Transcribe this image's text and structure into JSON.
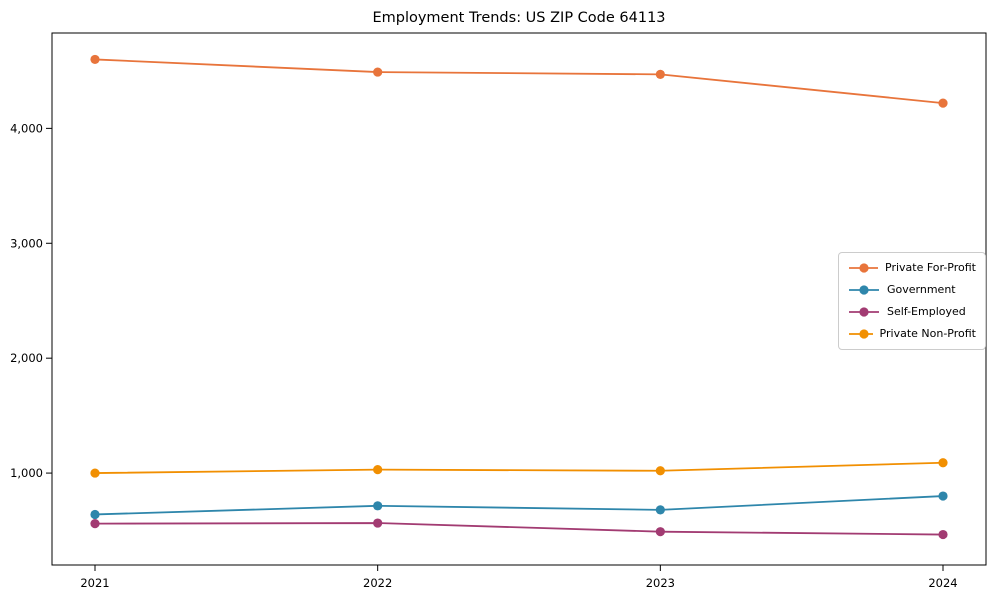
{
  "figure": {
    "title": "Employment Trends: US ZIP Code 64113"
  },
  "chart_data": {
    "type": "line",
    "title": "Employment Trends: US ZIP Code 64113",
    "xlabel": "",
    "ylabel": "",
    "categories": [
      "2021",
      "2022",
      "2023",
      "2024"
    ],
    "series": [
      {
        "name": "Private For-Profit",
        "color": "#E8743B",
        "values": [
          4600,
          4490,
          4470,
          4220
        ]
      },
      {
        "name": "Government",
        "color": "#2E86AB",
        "values": [
          640,
          715,
          680,
          800
        ]
      },
      {
        "name": "Self-Employed",
        "color": "#A23B72",
        "values": [
          560,
          565,
          490,
          465
        ]
      },
      {
        "name": "Private Non-Profit",
        "color": "#F18F01",
        "values": [
          1000,
          1030,
          1020,
          1090
        ]
      }
    ],
    "yticks": [
      {
        "value": 1000,
        "label": "1,000"
      },
      {
        "value": 2000,
        "label": "2,000"
      },
      {
        "value": 3000,
        "label": "3,000"
      },
      {
        "value": 4000,
        "label": "4,000"
      }
    ],
    "ylim": [
      200,
      4830
    ],
    "grid": false,
    "marker": "circle",
    "legend_position": "center-right",
    "frame_color": "#000000",
    "background": "#ffffff"
  }
}
